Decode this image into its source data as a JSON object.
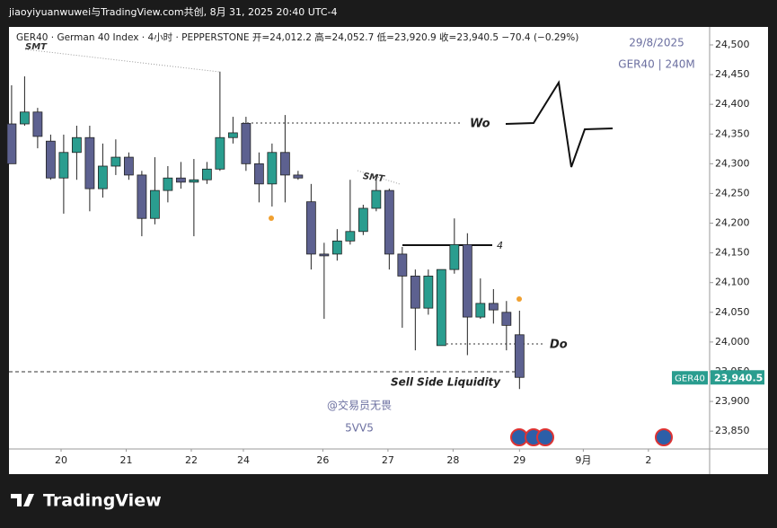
{
  "header": "jiaoyiyuanwuwei与TradingView.com共创, 8月 31, 2025 20:40 UTC-4",
  "footer_logo": "TradingView",
  "chart_data": {
    "type": "candlestick",
    "legend_text": "GER40 · German 40 Index · 4小时 · PEPPERSTONE  开=24,012.2  高=24,052.7  低=23,920.9  收=23,940.5  −70.4 (−0.29%)",
    "date_note": "29/8/2025",
    "symbol_note": "GER40 | 240M",
    "watermark": [
      "@交易员无畏",
      "5VV5"
    ],
    "annotations": {
      "smt1": "SMT",
      "smt2": "SMT",
      "wo": "Wo",
      "four": "4",
      "do": "Do",
      "ssl": "Sell Side Liquidity"
    },
    "up_color": "#2a9d8f",
    "down_color": "#5d6190",
    "candles": [
      {
        "open": 24367,
        "high": 24432,
        "low": 24300,
        "close": 24300
      },
      {
        "open": 24367,
        "high": 24447,
        "low": 24364,
        "close": 24387
      },
      {
        "open": 24387,
        "high": 24394,
        "low": 24326,
        "close": 24346
      },
      {
        "open": 24338,
        "high": 24349,
        "low": 24273,
        "close": 24276
      },
      {
        "open": 24276,
        "high": 24349,
        "low": 24216,
        "close": 24319
      },
      {
        "open": 24319,
        "high": 24364,
        "low": 24273,
        "close": 24344
      },
      {
        "open": 24344,
        "high": 24364,
        "low": 24220,
        "close": 24258
      },
      {
        "open": 24258,
        "high": 24334,
        "low": 24243,
        "close": 24296
      },
      {
        "open": 24296,
        "high": 24341,
        "low": 24281,
        "close": 24311
      },
      {
        "open": 24311,
        "high": 24319,
        "low": 24273,
        "close": 24281
      },
      {
        "open": 24281,
        "high": 24288,
        "low": 24178,
        "close": 24208
      },
      {
        "open": 24208,
        "high": 24311,
        "low": 24198,
        "close": 24255
      },
      {
        "open": 24255,
        "high": 24296,
        "low": 24235,
        "close": 24276
      },
      {
        "open": 24276,
        "high": 24303,
        "low": 24258,
        "close": 24269
      },
      {
        "open": 24269,
        "high": 24308,
        "low": 24178,
        "close": 24273
      },
      {
        "open": 24273,
        "high": 24303,
        "low": 24266,
        "close": 24291
      },
      {
        "open": 24291,
        "high": 24455,
        "low": 24288,
        "close": 24344
      },
      {
        "open": 24344,
        "high": 24379,
        "low": 24334,
        "close": 24352
      },
      {
        "open": 24368,
        "high": 24379,
        "low": 24288,
        "close": 24300
      },
      {
        "open": 24300,
        "high": 24319,
        "low": 24235,
        "close": 24266
      },
      {
        "open": 24266,
        "high": 24334,
        "low": 24228,
        "close": 24319
      },
      {
        "open": 24319,
        "high": 24382,
        "low": 24235,
        "close": 24281
      },
      {
        "open": 24281,
        "high": 24288,
        "low": 24273,
        "close": 24276
      },
      {
        "open": 24236,
        "high": 24266,
        "low": 24122,
        "close": 24148
      },
      {
        "open": 24148,
        "high": 24167,
        "low": 24039,
        "close": 24145
      },
      {
        "open": 24148,
        "high": 24190,
        "low": 24137,
        "close": 24170
      },
      {
        "open": 24170,
        "high": 24273,
        "low": 24164,
        "close": 24186
      },
      {
        "open": 24186,
        "high": 24231,
        "low": 24180,
        "close": 24225
      },
      {
        "open": 24225,
        "high": 24273,
        "low": 24220,
        "close": 24255
      },
      {
        "open": 24255,
        "high": 24258,
        "low": 24122,
        "close": 24148
      },
      {
        "open": 24148,
        "high": 24160,
        "low": 24024,
        "close": 24111
      },
      {
        "open": 24111,
        "high": 24122,
        "low": 23986,
        "close": 24057
      },
      {
        "open": 24057,
        "high": 24122,
        "low": 24046,
        "close": 24111
      },
      {
        "open": 23994,
        "high": 24122,
        "low": 23994,
        "close": 24122
      },
      {
        "open": 24122,
        "high": 24208,
        "low": 24115,
        "close": 24164
      },
      {
        "open": 24164,
        "high": 24183,
        "low": 23978,
        "close": 24042
      },
      {
        "open": 24042,
        "high": 24107,
        "low": 24039,
        "close": 24065
      },
      {
        "open": 24065,
        "high": 24089,
        "low": 24031,
        "close": 24054
      },
      {
        "open": 24050,
        "high": 24069,
        "low": 23986,
        "close": 24028
      },
      {
        "open": 24012.2,
        "high": 24052.7,
        "low": 23920.9,
        "close": 23940.5
      }
    ],
    "xlim": [
      -0.2,
      53.6
    ],
    "xticks": [
      {
        "value": 3.8,
        "label": "20"
      },
      {
        "value": 8.8,
        "label": "21"
      },
      {
        "value": 13.8,
        "label": "22"
      },
      {
        "value": 17.8,
        "label": "24"
      },
      {
        "value": 23.9,
        "label": "26"
      },
      {
        "value": 28.9,
        "label": "27"
      },
      {
        "value": 33.9,
        "label": "28"
      },
      {
        "value": 39,
        "label": "29"
      },
      {
        "value": 43.9,
        "label": "9月"
      },
      {
        "value": 48.9,
        "label": "2"
      }
    ],
    "ylim": [
      24530.2,
      23820
    ],
    "yticks": [
      {
        "value": 24500,
        "label": "24,500"
      },
      {
        "value": 24450,
        "label": "24,450"
      },
      {
        "value": 24400,
        "label": "24,400"
      },
      {
        "value": 24350,
        "label": "24,350"
      },
      {
        "value": 24300,
        "label": "24,300"
      },
      {
        "value": 24250,
        "label": "24,250"
      },
      {
        "value": 24200,
        "label": "24,200"
      },
      {
        "value": 24150,
        "label": "24,150"
      },
      {
        "value": 24100,
        "label": "24,100"
      },
      {
        "value": 24050,
        "label": "24,050"
      },
      {
        "value": 24000,
        "label": "24,000"
      },
      {
        "value": 23950,
        "label": "23,950"
      },
      {
        "value": 23900,
        "label": "23,900"
      },
      {
        "value": 23850,
        "label": "23,850"
      }
    ],
    "last_price": {
      "symbol": "GER40",
      "value": 23940.5,
      "label": "23,940.5"
    }
  }
}
